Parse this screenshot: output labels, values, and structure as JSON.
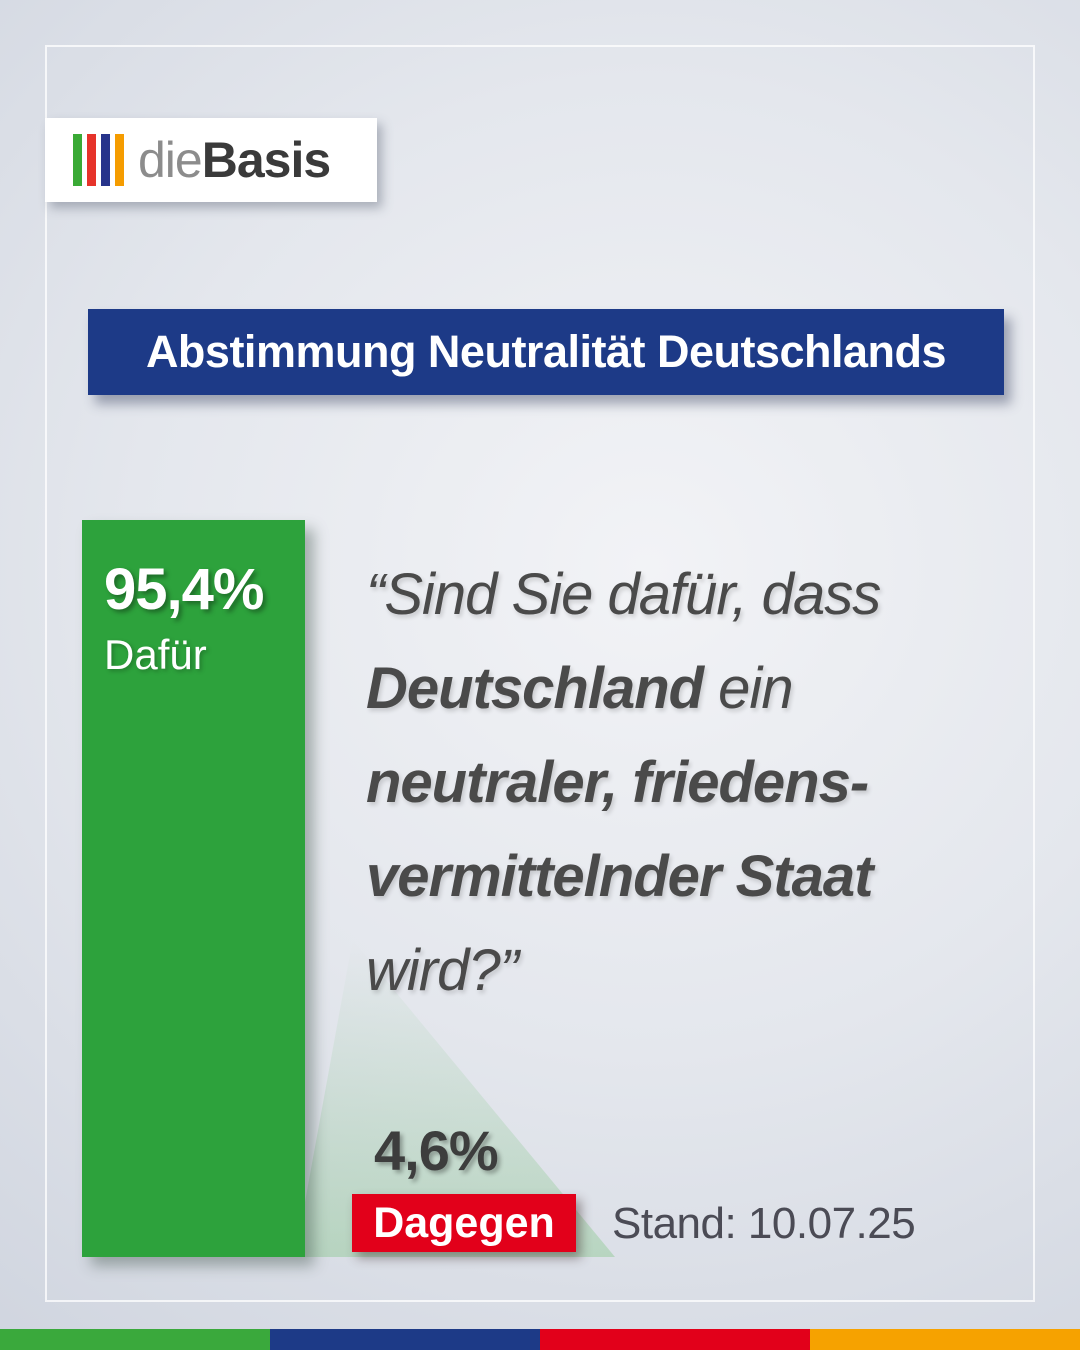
{
  "logo": {
    "part1": "die",
    "part2": "Basis",
    "bars": [
      "#3aaa35",
      "#e6332a",
      "#27348b",
      "#f59c00"
    ]
  },
  "banner": {
    "title": "Abstimmung Neutralität Deutschlands",
    "bg": "#1d3a87"
  },
  "result_for": {
    "value": "95,4%",
    "label": "Dafür",
    "color": "#2da23c"
  },
  "question": {
    "line1": "“Sind Sie dafür, dass",
    "line2_bold": "Deutschland",
    "line2_rest": " ein",
    "line3_bold": "neutraler, friedens-",
    "line4_bold": "vermittelnder Staat",
    "line5": "wird?”"
  },
  "result_against": {
    "value": "4,6%",
    "label": "Dagegen",
    "color": "#e2001a"
  },
  "footer": {
    "stand": "Stand: 10.07.25"
  },
  "bottom_stripe": [
    "#3aa93c",
    "#1d3a87",
    "#e2001a",
    "#f6a200"
  ],
  "chart_data": {
    "type": "bar",
    "title": "Abstimmung Neutralität Deutschlands",
    "categories": [
      "Dafür",
      "Dagegen"
    ],
    "values": [
      95.4,
      4.6
    ],
    "value_labels": [
      "95,4%",
      "4,6%"
    ],
    "colors": [
      "#2da23c",
      "#e2001a"
    ],
    "ylim": [
      0,
      100
    ],
    "annotations": [
      "“Sind Sie dafür, dass Deutschland ein neutraler, friedensvermittelnder Staat wird?”",
      "Stand: 10.07.25"
    ],
    "legend_position": "none",
    "grid": false
  }
}
